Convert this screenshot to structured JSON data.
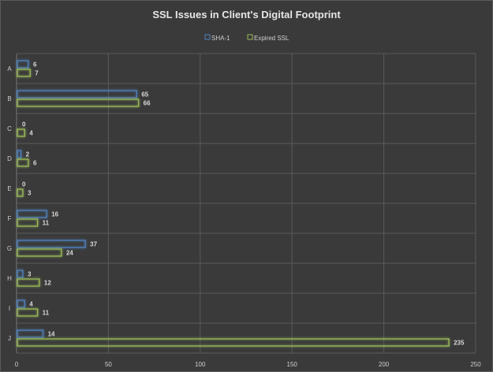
{
  "chart_data": {
    "type": "bar",
    "orientation": "horizontal",
    "title": "SSL Issues in Client's Digital Footprint",
    "categories": [
      "A",
      "B",
      "C",
      "D",
      "E",
      "F",
      "G",
      "H",
      "I",
      "J"
    ],
    "series": [
      {
        "name": "SHA-1",
        "values": [
          6,
          65,
          0,
          2,
          0,
          16,
          37,
          3,
          4,
          14
        ],
        "color": "#4f81bd"
      },
      {
        "name": "Expired SSL",
        "values": [
          7,
          66,
          4,
          6,
          3,
          11,
          24,
          12,
          11,
          235
        ],
        "color": "#9bbb59"
      }
    ],
    "xlim": [
      0,
      250
    ],
    "xticks": [
      0,
      50,
      100,
      150,
      200,
      250
    ],
    "grid": true,
    "legend_position": "top",
    "data_labels": true
  },
  "colors": {
    "background": "#3a3a3a",
    "grid": "#5a5a5a",
    "text": "#d9d9d9"
  }
}
